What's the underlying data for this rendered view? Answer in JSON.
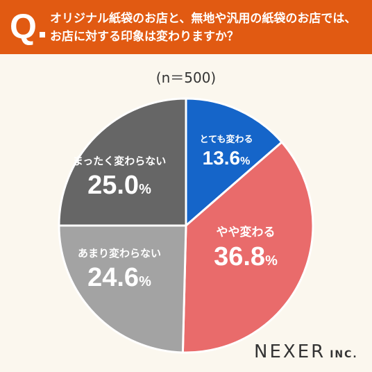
{
  "header": {
    "q_label": "Q",
    "title": "オリジナル紙袋のお店と、無地や汎用の紙袋のお店では、お店に対する印象は変わりますか？"
  },
  "sample_label": "(n＝500)",
  "brand": {
    "name": "NEXER",
    "suffix": "INC."
  },
  "colors": {
    "header": "#e15a12",
    "background": "#fbf7ee",
    "slice_1": "#1565c9",
    "slice_2": "#e96b6b",
    "slice_3": "#a3a3a3",
    "slice_4": "#666666"
  },
  "chart_data": {
    "type": "pie",
    "title": "",
    "unit": "%",
    "slices": [
      {
        "label": "とても変わる",
        "value": 13.6,
        "value_text": "13.6",
        "color": "#1565c9"
      },
      {
        "label": "やや変わる",
        "value": 36.8,
        "value_text": "36.8",
        "color": "#e96b6b"
      },
      {
        "label": "あまり変わらない",
        "value": 24.6,
        "value_text": "24.6",
        "color": "#a3a3a3"
      },
      {
        "label": "まったく変わらない",
        "value": 25.0,
        "value_text": "25.0",
        "color": "#666666"
      }
    ]
  }
}
